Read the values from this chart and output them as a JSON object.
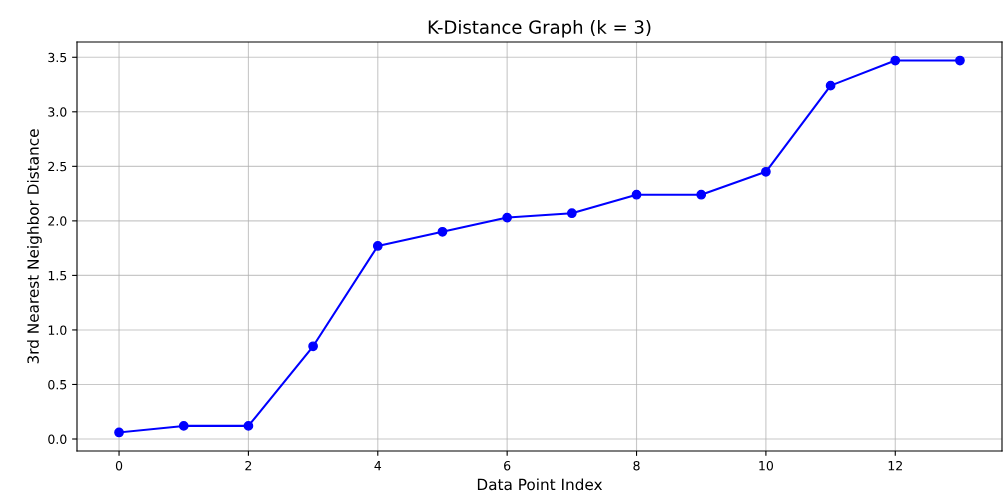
{
  "chart_data": {
    "type": "line",
    "title": "K-Distance Graph (k = 3)",
    "xlabel": "Data Point Index",
    "ylabel": "3rd Nearest Neighbor Distance",
    "x": [
      0,
      1,
      2,
      3,
      4,
      5,
      6,
      7,
      8,
      9,
      10,
      11,
      12,
      13
    ],
    "series": [
      {
        "color": "#0000ff",
        "values": [
          0.06,
          0.12,
          0.12,
          0.85,
          1.77,
          1.9,
          2.03,
          2.07,
          2.24,
          2.24,
          2.45,
          3.24,
          3.47,
          3.47
        ]
      }
    ],
    "xlim": [
      -0.65,
      13.65
    ],
    "ylim": [
      -0.11,
      3.64
    ],
    "xticks": [
      0,
      2,
      4,
      6,
      8,
      10,
      12
    ],
    "yticks": [
      {
        "value": 0,
        "label": "0.0"
      },
      {
        "value": 0.5,
        "label": "0.5"
      },
      {
        "value": 1,
        "label": "1.0"
      },
      {
        "value": 1.5,
        "label": "1.5"
      },
      {
        "value": 2,
        "label": "2.0"
      },
      {
        "value": 2.5,
        "label": "2.5"
      },
      {
        "value": 3,
        "label": "3.0"
      },
      {
        "value": 3.5,
        "label": "3.5"
      }
    ],
    "grid": true,
    "marker": "circle",
    "line_style": "solid"
  }
}
